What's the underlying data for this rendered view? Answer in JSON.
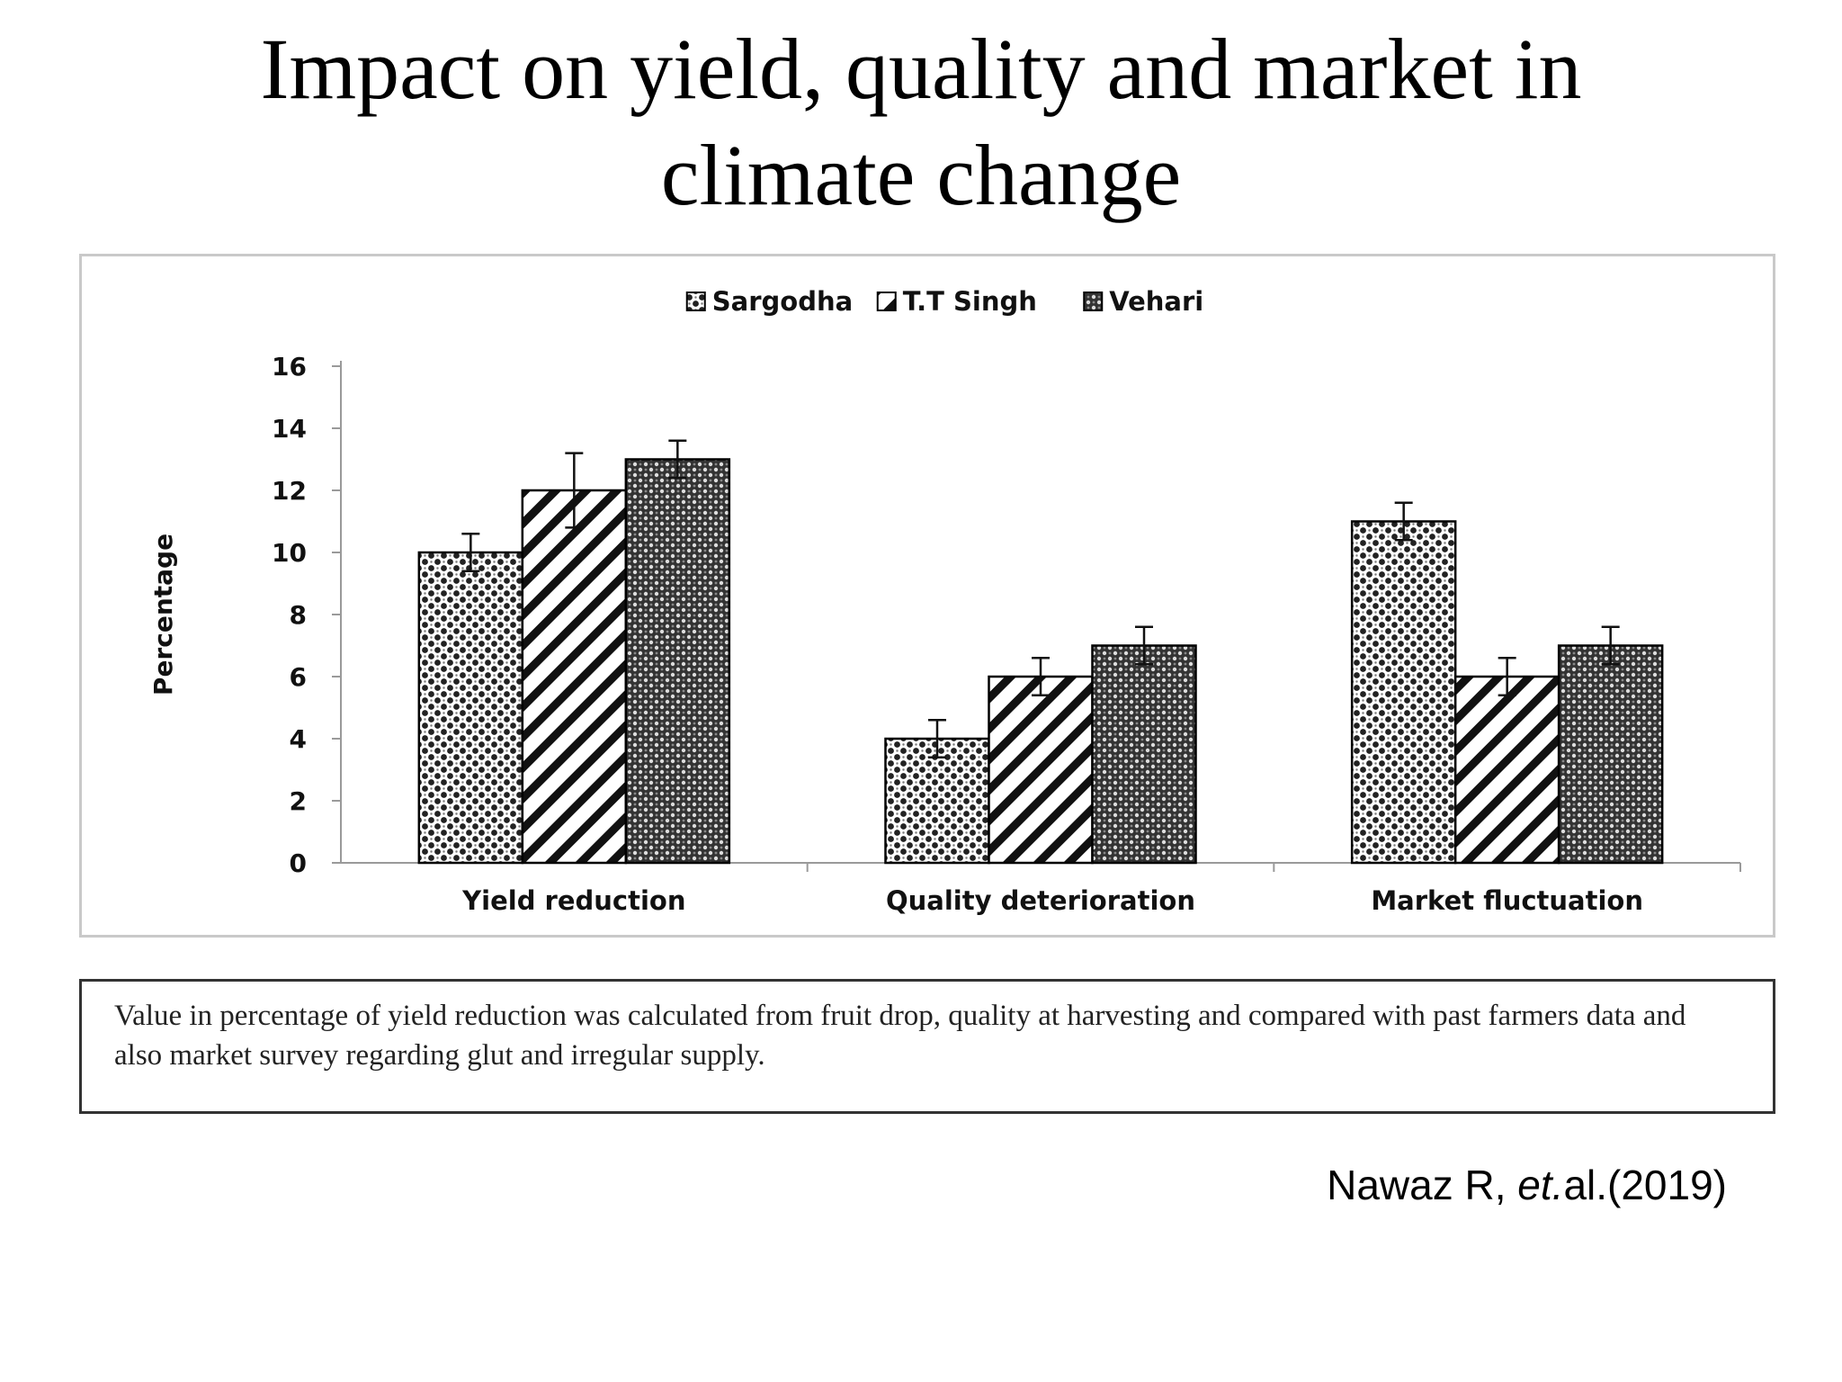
{
  "title": {
    "line1": "Impact on yield, quality and market in",
    "line2": "climate change"
  },
  "chart_data": {
    "type": "bar",
    "categories": [
      "Yield reduction",
      "Quality deterioration",
      "Market fluctuation"
    ],
    "series": [
      {
        "name": "Sargodha",
        "values": [
          10,
          4,
          11
        ],
        "errors": [
          0.6,
          0.6,
          0.6
        ],
        "pattern": "dots"
      },
      {
        "name": "T.T Singh",
        "values": [
          12,
          6,
          6
        ],
        "errors": [
          1.2,
          0.6,
          0.6
        ],
        "pattern": "diagonal-stripes"
      },
      {
        "name": "Vehari",
        "values": [
          13,
          7,
          7
        ],
        "errors": [
          0.6,
          0.6,
          0.6
        ],
        "pattern": "checker"
      }
    ],
    "ylabel": "Percentage",
    "xlabel": "",
    "ylim": [
      0,
      16
    ],
    "yticks": [
      0,
      2,
      4,
      6,
      8,
      10,
      12,
      14,
      16
    ],
    "legend_position": "top-center",
    "grid": false
  },
  "note": "Value in percentage of yield reduction was calculated from fruit drop, quality at harvesting and compared with past farmers data and also market survey regarding glut and irregular supply.",
  "citation": {
    "author": "Nawaz R, ",
    "etal": "et.",
    "rest": "al.(2019)"
  }
}
